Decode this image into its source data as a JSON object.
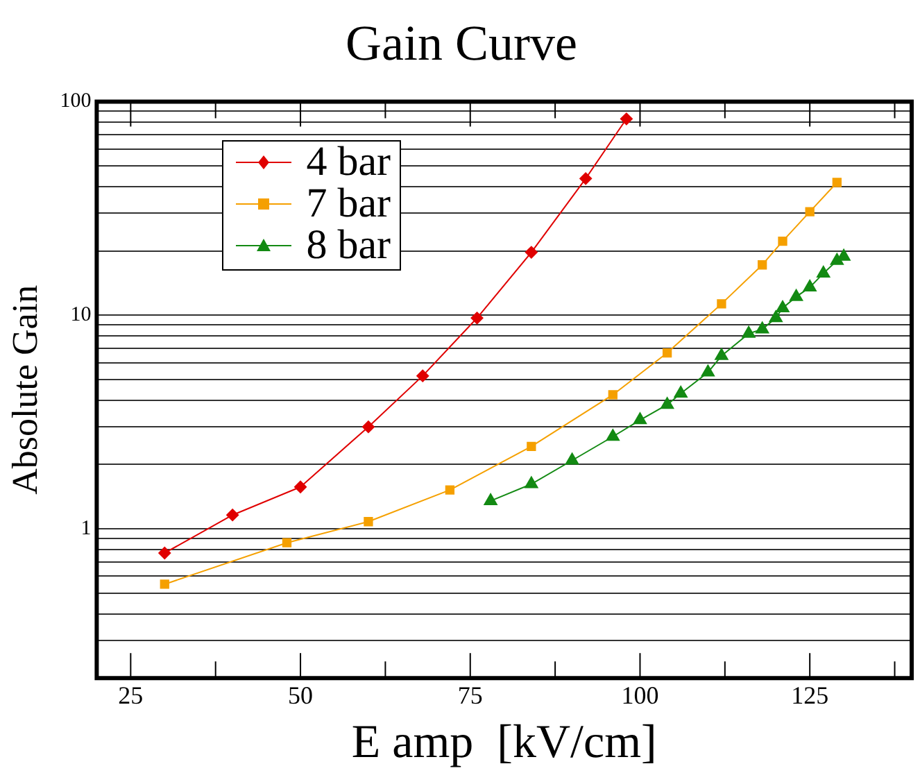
{
  "chart_data": {
    "type": "line",
    "title": "Gain Curve",
    "xlabel": "E amp  [kV/cm]",
    "ylabel": "Absolute Gain",
    "log": "y",
    "grid": "y",
    "legend": "top left",
    "line_style": "solid",
    "xlim": [
      20,
      140
    ],
    "xticks": [
      25,
      {
        "value": 37.5,
        "label": null
      },
      50,
      {
        "value": 62.5,
        "label": null
      },
      75,
      {
        "value": 87.5,
        "label": null
      },
      100,
      {
        "value": 112.5,
        "label": null
      },
      125,
      {
        "value": 137.5,
        "label": null
      }
    ],
    "ylim": [
      0.2,
      100
    ],
    "yticks": [
      {
        "value": 0.2,
        "label": null
      },
      {
        "value": 0.3,
        "label": null
      },
      {
        "value": 0.4,
        "label": null
      },
      {
        "value": 0.5,
        "label": null
      },
      {
        "value": 0.6,
        "label": null
      },
      {
        "value": 0.7,
        "label": null
      },
      {
        "value": 0.8,
        "label": null
      },
      {
        "value": 0.9,
        "label": null
      },
      1,
      {
        "value": 2,
        "label": null
      },
      {
        "value": 3,
        "label": null
      },
      {
        "value": 4,
        "label": null
      },
      {
        "value": 5,
        "label": null
      },
      {
        "value": 6,
        "label": null
      },
      {
        "value": 7,
        "label": null
      },
      {
        "value": 8,
        "label": null
      },
      {
        "value": 9,
        "label": null
      },
      10,
      {
        "value": 20,
        "label": null
      },
      {
        "value": 30,
        "label": null
      },
      {
        "value": 40,
        "label": null
      },
      {
        "value": 50,
        "label": null
      },
      {
        "value": 60,
        "label": null
      },
      {
        "value": 70,
        "label": null
      },
      {
        "value": 80,
        "label": null
      },
      {
        "value": 90,
        "label": null
      },
      100
    ],
    "series": [
      {
        "name": "4 bar",
        "color": "#e00000",
        "marker": "diamond",
        "x": [
          30,
          40,
          50,
          60,
          68,
          76,
          84,
          92,
          98
        ],
        "values": [
          0.77,
          1.16,
          1.57,
          3.0,
          5.2,
          9.7,
          19.7,
          43.6,
          83
        ]
      },
      {
        "name": "7 bar",
        "color": "#f5a000",
        "marker": "square",
        "x": [
          30,
          48,
          60,
          72,
          84,
          96,
          104,
          112,
          118,
          121,
          125,
          129
        ],
        "values": [
          0.55,
          0.86,
          1.08,
          1.52,
          2.43,
          4.24,
          6.66,
          11.3,
          17.2,
          22.2,
          30.5,
          41.8
        ]
      },
      {
        "name": "8 bar",
        "color": "#138a13",
        "marker": "triangle",
        "x": [
          78,
          84,
          90,
          96,
          100,
          104,
          106,
          110,
          112,
          116,
          118,
          120,
          121,
          123,
          125,
          127,
          129,
          130
        ],
        "values": [
          1.35,
          1.62,
          2.09,
          2.7,
          3.23,
          3.81,
          4.3,
          5.4,
          6.45,
          8.2,
          8.6,
          9.7,
          10.8,
          12.2,
          13.5,
          15.7,
          18.0,
          18.8
        ]
      }
    ]
  }
}
